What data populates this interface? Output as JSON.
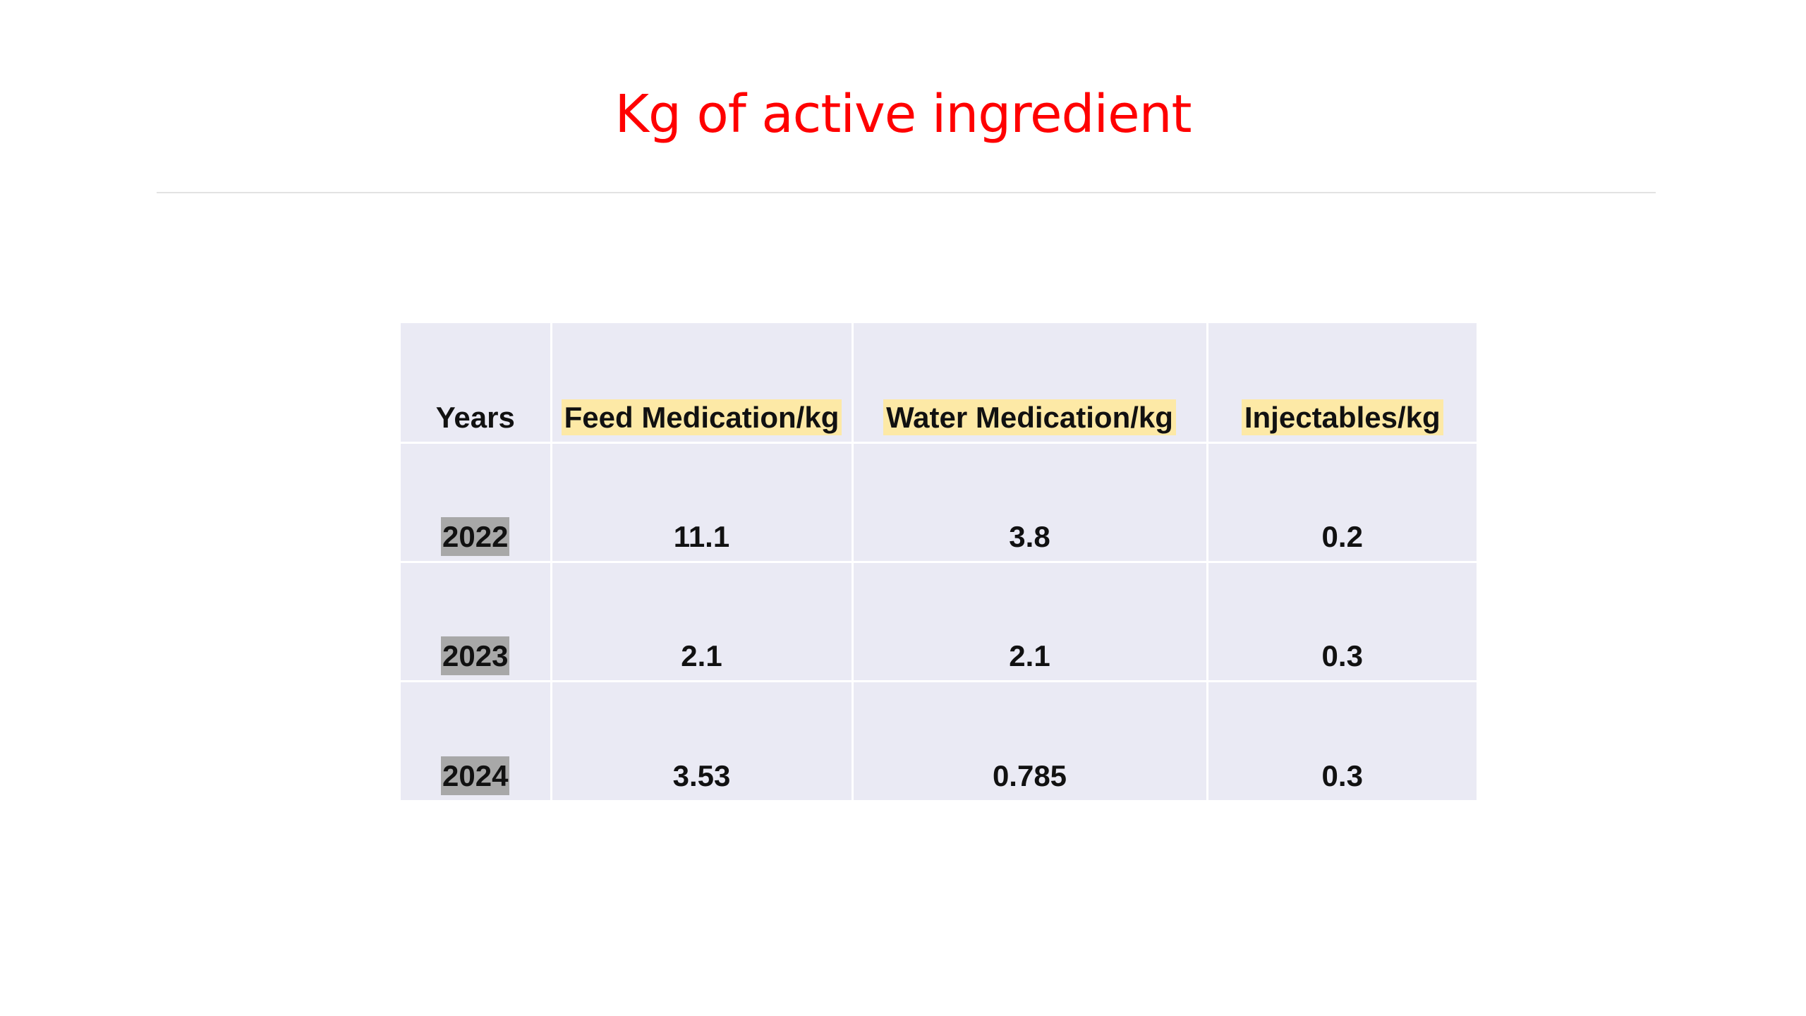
{
  "slide": {
    "title": "Kg of active ingredient"
  },
  "table": {
    "headers": [
      "Years",
      "Feed Medication/kg",
      "Water Medication/kg",
      "Injectables/kg"
    ],
    "rows": [
      {
        "year": "2022",
        "feed": "11.1",
        "water": "3.8",
        "injectables": "0.2"
      },
      {
        "year": "2023",
        "feed": "2.1",
        "water": "2.1",
        "injectables": "0.3"
      },
      {
        "year": "2024",
        "feed": "3.53",
        "water": "0.785",
        "injectables": "0.3"
      }
    ]
  },
  "colors": {
    "title": "#ff0000",
    "table_fill": "#eaeaf4",
    "header_highlight": "#fde9a6",
    "year_highlight": "#a8a8a8"
  }
}
